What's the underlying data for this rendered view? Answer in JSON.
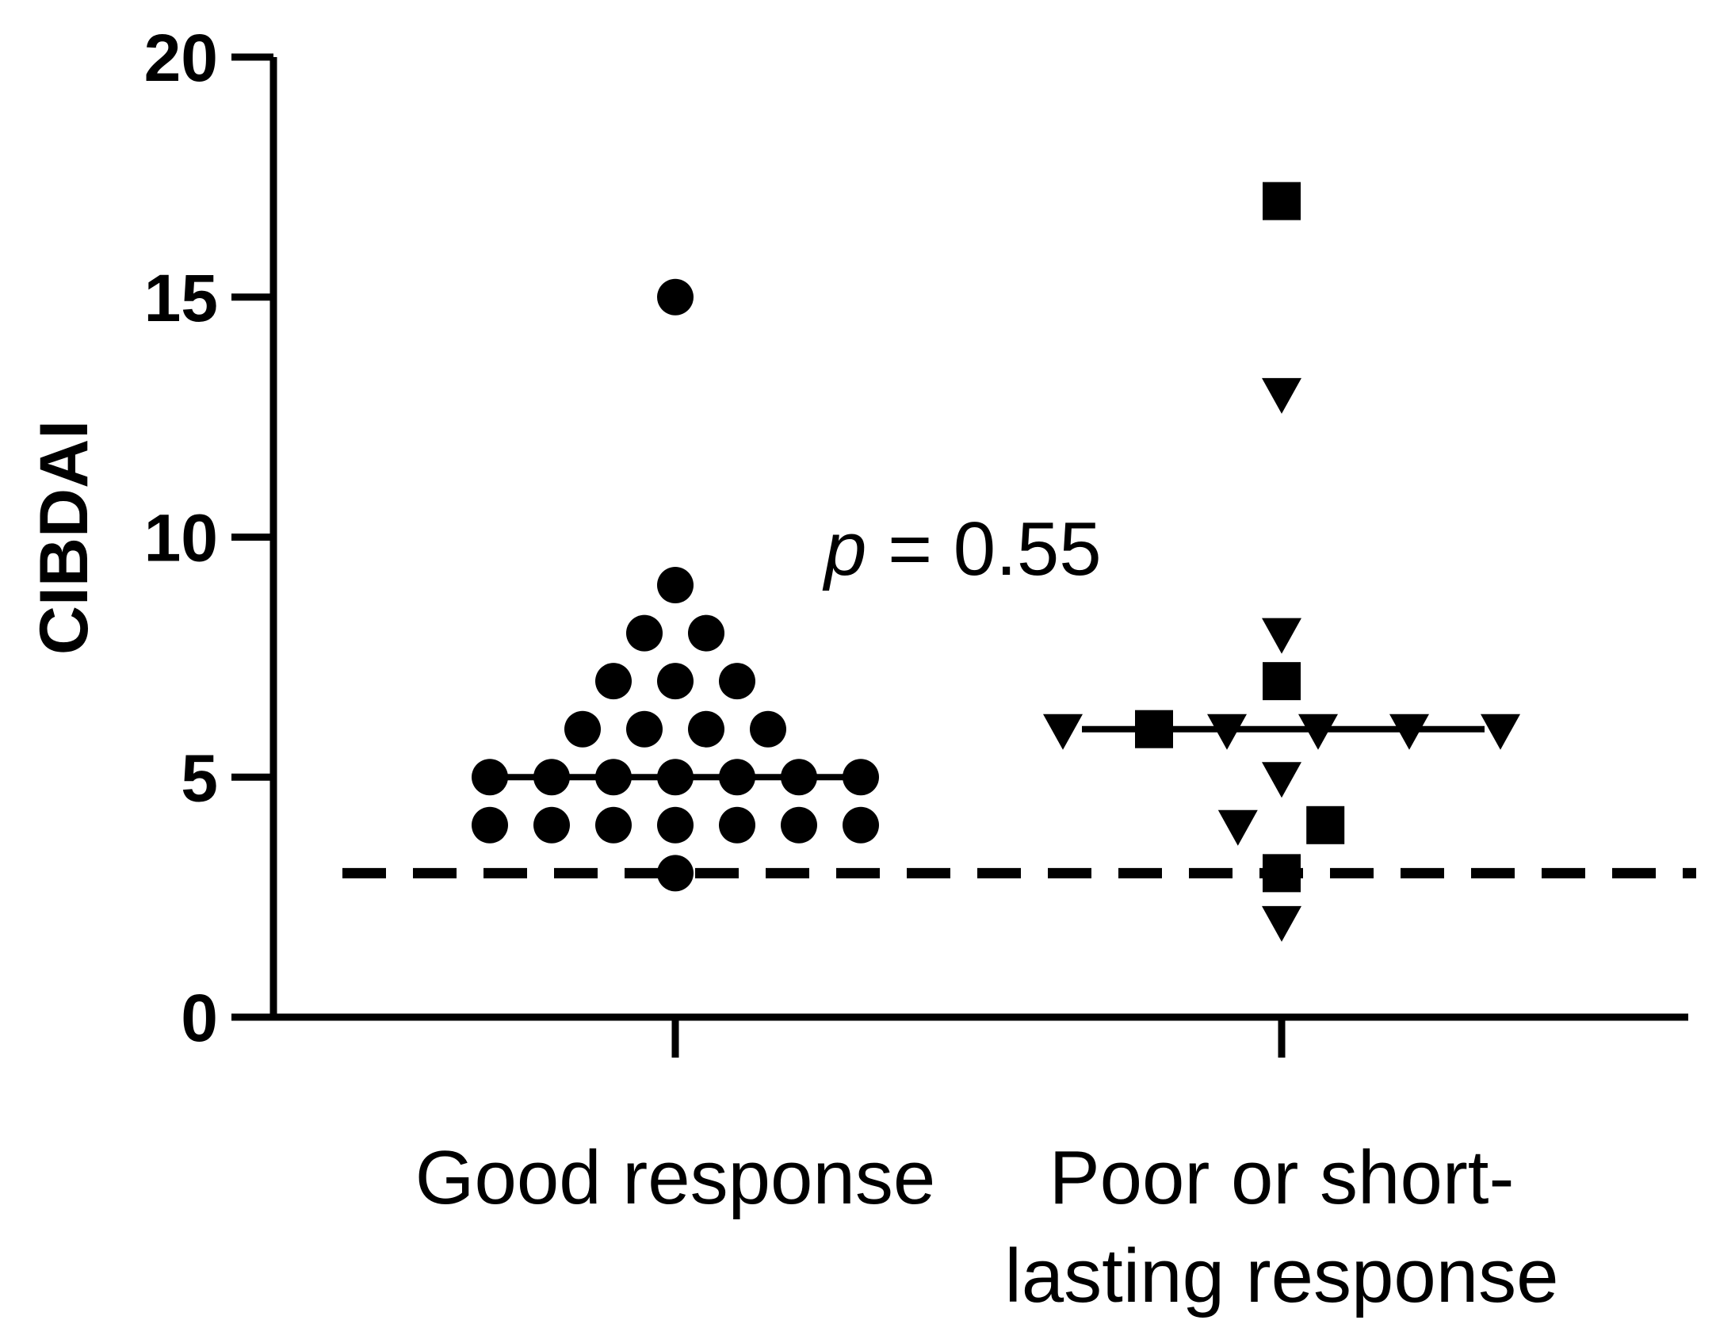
{
  "chart_data": {
    "type": "scatter",
    "title": "",
    "xlabel": "",
    "ylabel": "CIBDAI",
    "ylim": [
      0,
      20
    ],
    "yticks": [
      "0",
      "5",
      "10",
      "15",
      "20"
    ],
    "categories": [
      {
        "label_line1": "Good response",
        "label_line2": ""
      },
      {
        "label_line1": "Poor or short-",
        "label_line2": "lasting response"
      }
    ],
    "threshold": 3,
    "annotation": {
      "italic": "p",
      "rest": " = 0.55"
    },
    "series": [
      {
        "name": "Good response",
        "marker": "circle",
        "median": 5,
        "points": [
          {
            "offset": 0,
            "y": 15
          },
          {
            "offset": 0,
            "y": 9
          },
          {
            "offset": -0.5,
            "y": 8
          },
          {
            "offset": 0.5,
            "y": 8
          },
          {
            "offset": -1,
            "y": 7
          },
          {
            "offset": 0,
            "y": 7
          },
          {
            "offset": 1,
            "y": 7
          },
          {
            "offset": -1.5,
            "y": 6
          },
          {
            "offset": -0.5,
            "y": 6
          },
          {
            "offset": 0.5,
            "y": 6
          },
          {
            "offset": 1.5,
            "y": 6
          },
          {
            "offset": -3,
            "y": 5
          },
          {
            "offset": -2,
            "y": 5
          },
          {
            "offset": -1,
            "y": 5
          },
          {
            "offset": 0,
            "y": 5
          },
          {
            "offset": 1,
            "y": 5
          },
          {
            "offset": 2,
            "y": 5
          },
          {
            "offset": 3,
            "y": 5
          },
          {
            "offset": -3,
            "y": 4
          },
          {
            "offset": -2,
            "y": 4
          },
          {
            "offset": -1,
            "y": 4
          },
          {
            "offset": 0,
            "y": 4
          },
          {
            "offset": 1,
            "y": 4
          },
          {
            "offset": 2,
            "y": 4
          },
          {
            "offset": 3,
            "y": 4
          },
          {
            "offset": 0,
            "y": 3
          }
        ]
      },
      {
        "name": "Poor or short-lasting response",
        "marker": "mixed",
        "median": 6,
        "points": [
          {
            "marker": "square",
            "offset": 0,
            "y": 17
          },
          {
            "marker": "triangle",
            "offset": 0,
            "y": 13
          },
          {
            "marker": "triangle",
            "offset": 0,
            "y": 8
          },
          {
            "marker": "square",
            "offset": 0,
            "y": 7
          },
          {
            "marker": "triangle",
            "offset": -3,
            "y": 6
          },
          {
            "marker": "square",
            "offset": -1.75,
            "y": 6
          },
          {
            "marker": "triangle",
            "offset": -0.75,
            "y": 6
          },
          {
            "marker": "triangle",
            "offset": 0.5,
            "y": 6
          },
          {
            "marker": "triangle",
            "offset": 1.75,
            "y": 6
          },
          {
            "marker": "triangle",
            "offset": 3,
            "y": 6
          },
          {
            "marker": "triangle",
            "offset": 0,
            "y": 5
          },
          {
            "marker": "triangle",
            "offset": -0.6,
            "y": 4
          },
          {
            "marker": "square",
            "offset": 0.6,
            "y": 4
          },
          {
            "marker": "square",
            "offset": 0,
            "y": 3
          },
          {
            "marker": "triangle",
            "offset": 0,
            "y": 2
          }
        ]
      }
    ]
  }
}
